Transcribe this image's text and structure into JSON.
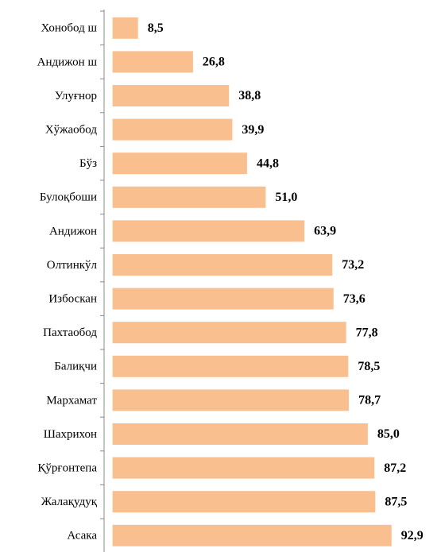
{
  "chart_data": {
    "type": "barh",
    "categories": [
      "Хонобод ш",
      "Андижон ш",
      "Улуғнор",
      "Хўжаобод",
      "Бўз",
      "Булоқбоши",
      "Андижон",
      "Олтинкўл",
      "Избоскан",
      "Пахтаобод",
      "Балиқчи",
      "Мархамат",
      "Шахрихон",
      "Қўрғонтепа",
      "Жалақудуқ",
      "Асака"
    ],
    "values": [
      8.5,
      26.8,
      38.8,
      39.9,
      44.8,
      51.0,
      63.9,
      73.2,
      73.6,
      77.8,
      78.5,
      78.7,
      85.0,
      87.2,
      87.5,
      92.9
    ],
    "value_labels": [
      "8,5",
      "26,8",
      "38,8",
      "39,9",
      "44,8",
      "51,0",
      "63,9",
      "73,2",
      "73,6",
      "77,8",
      "78,5",
      "78,7",
      "85,0",
      "87,2",
      "87,5",
      "92,9"
    ],
    "color": "#f9bf8f"
  }
}
